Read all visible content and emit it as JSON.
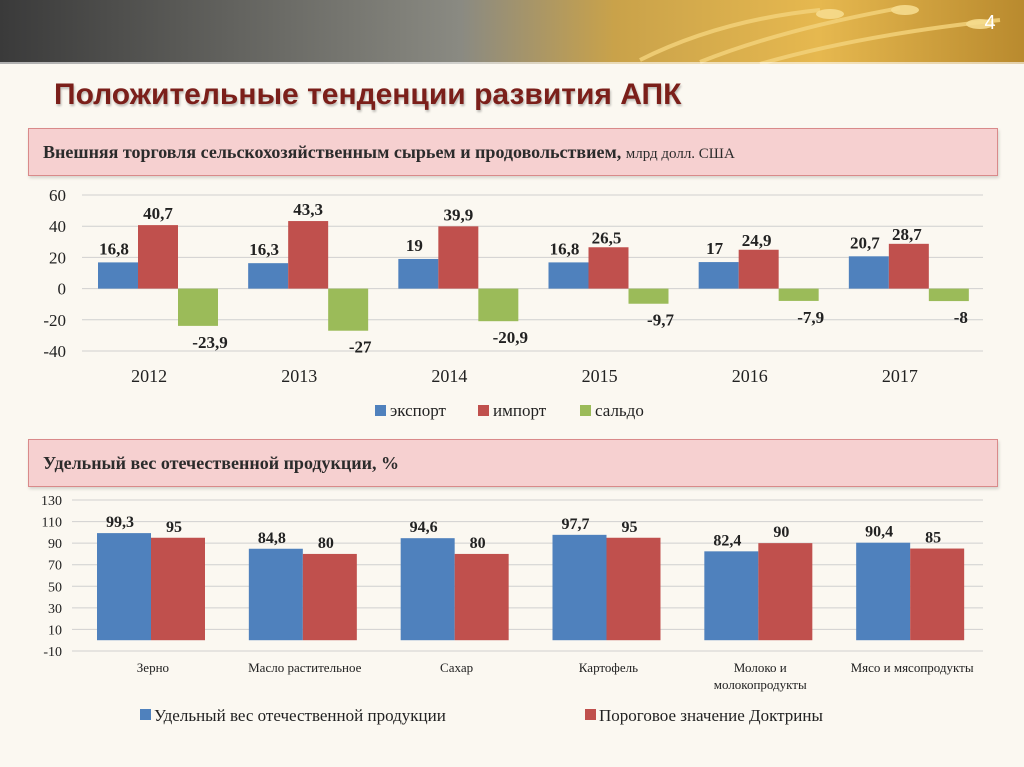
{
  "slide_number": "4",
  "title": "Положительные тенденции развития АПК",
  "colors": {
    "title": "#7b1f1a",
    "export": "#4f81bd",
    "import": "#c0504d",
    "balance": "#9bbb59"
  },
  "chart_data": [
    {
      "type": "bar",
      "title": "Внешняя торговля сельскохозяйственным сырьем и продовольствием,",
      "unit": "млрд долл. США",
      "categories": [
        "2012",
        "2013",
        "2014",
        "2015",
        "2016",
        "2017"
      ],
      "series": [
        {
          "name": "экспорт",
          "values": [
            16.8,
            16.3,
            19,
            16.8,
            17,
            20.7
          ],
          "labels": [
            "16,8",
            "16,3",
            "19",
            "16,8",
            "17",
            "20,7"
          ]
        },
        {
          "name": "импорт",
          "values": [
            40.7,
            43.3,
            39.9,
            26.5,
            24.9,
            28.7
          ],
          "labels": [
            "40,7",
            "43,3",
            "39,9",
            "26,5",
            "24,9",
            "28,7"
          ]
        },
        {
          "name": "сальдо",
          "values": [
            -23.9,
            -27,
            -20.9,
            -9.7,
            -7.9,
            -8
          ],
          "labels": [
            "-23,9",
            "-27",
            "-20,9",
            "-9,7",
            "-7,9",
            "-8"
          ]
        }
      ],
      "yticks": [
        "60",
        "40",
        "20",
        "0",
        "-20",
        "-40"
      ],
      "ylim": [
        -40,
        60
      ],
      "grid": true,
      "legend": "bottom"
    },
    {
      "type": "bar",
      "title": "Удельный вес отечественной продукции, %",
      "categories": [
        [
          "Зерно"
        ],
        [
          "Масло растительное"
        ],
        [
          "Сахар"
        ],
        [
          "Картофель"
        ],
        [
          "Молоко и",
          "молокопродукты"
        ],
        [
          "Мясо и мясопродукты"
        ]
      ],
      "series": [
        {
          "name": "Удельный вес отечественной продукции",
          "values": [
            99.3,
            84.8,
            94.6,
            97.7,
            82.4,
            90.4
          ],
          "labels": [
            "99,3",
            "84,8",
            "94,6",
            "97,7",
            "82,4",
            "90,4"
          ]
        },
        {
          "name": "Пороговое значение Доктрины",
          "values": [
            95,
            80,
            80,
            95,
            90,
            85
          ],
          "labels": [
            "95",
            "80",
            "80",
            "95",
            "90",
            "85"
          ]
        }
      ],
      "yticks": [
        "130",
        "110",
        "90",
        "70",
        "50",
        "30",
        "10",
        "-10"
      ],
      "ylim": [
        -10,
        130
      ],
      "grid": true,
      "legend": "bottom"
    }
  ]
}
